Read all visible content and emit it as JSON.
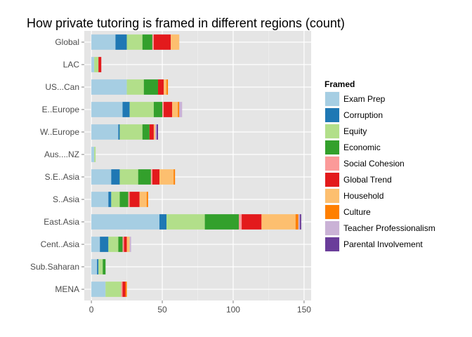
{
  "chart_data": {
    "type": "bar",
    "orientation": "horizontal",
    "stacked": true,
    "title": "How private tutoring is framed in different regions (count)",
    "xlabel": "",
    "ylabel": "",
    "xlim": [
      -5,
      155
    ],
    "x_ticks": [
      0,
      50,
      100,
      150
    ],
    "grid": true,
    "legend": {
      "title": "Framed",
      "position": "right"
    },
    "categories": [
      "Global",
      "LAC",
      "US...Can",
      "E..Europe",
      "W..Europe",
      "Aus....NZ",
      "S.E..Asia",
      "S..Asia",
      "East.Asia",
      "Cent..Asia",
      "Sub.Saharan",
      "MENA"
    ],
    "series": [
      {
        "name": "Exam Prep",
        "color": "#a6cee3",
        "values": [
          17,
          2,
          25,
          22,
          19,
          2,
          14,
          12,
          48,
          6,
          4,
          10
        ]
      },
      {
        "name": "Corruption",
        "color": "#1f78b4",
        "values": [
          8,
          0,
          0,
          5,
          1,
          0,
          6,
          2,
          5,
          6,
          1,
          0
        ]
      },
      {
        "name": "Equity",
        "color": "#b2df8a",
        "values": [
          11,
          3,
          12,
          17,
          16,
          1,
          13,
          6,
          27,
          7,
          3,
          11
        ]
      },
      {
        "name": "Economic",
        "color": "#33a02c",
        "values": [
          7,
          0,
          10,
          6,
          5,
          0,
          9,
          6,
          24,
          3,
          2,
          0
        ]
      },
      {
        "name": "Social Cohesion",
        "color": "#fb9a99",
        "values": [
          1,
          0,
          0,
          1,
          0,
          0,
          1,
          1,
          2,
          1,
          0,
          1
        ]
      },
      {
        "name": "Global Trend",
        "color": "#e31a1c",
        "values": [
          12,
          2,
          4,
          6,
          3,
          0,
          5,
          7,
          14,
          2,
          0,
          2
        ]
      },
      {
        "name": "Household",
        "color": "#fdbf6f",
        "values": [
          6,
          0,
          2,
          4,
          1,
          0,
          10,
          5,
          24,
          2,
          0,
          0
        ]
      },
      {
        "name": "Culture",
        "color": "#ff7f00",
        "values": [
          0,
          0,
          1,
          1,
          0,
          0,
          1,
          1,
          2,
          0,
          0,
          1
        ]
      },
      {
        "name": "Teacher Professionalism",
        "color": "#cab2d6",
        "values": [
          0,
          0,
          0,
          2,
          1,
          0,
          0,
          0,
          1,
          1,
          0,
          0
        ]
      },
      {
        "name": "Parental Involvement",
        "color": "#6a3d9a",
        "values": [
          0,
          0,
          0,
          0,
          1,
          0,
          0,
          0,
          1,
          0,
          0,
          0
        ]
      }
    ]
  }
}
